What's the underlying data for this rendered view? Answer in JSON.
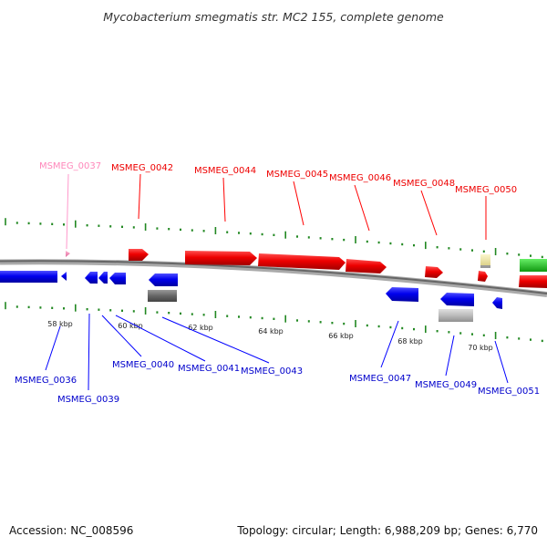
{
  "title": "Mycobacterium smegmatis str. MC2 155, complete genome",
  "accession": "Accession: NC_008596",
  "topology": "Topology: circular; Length: 6,988,209 bp; Genes: 6,770",
  "colors": {
    "forward": "#ff0000",
    "reverse": "#0000ff",
    "pseudo": "#ff88bb",
    "gray_dark": "#666666",
    "gray_light": "#bbbbbb",
    "yellow": "#f0e8a0",
    "green": "#33cc33",
    "tick": "#228822",
    "backbone": "#777777"
  },
  "kbp_labels": [
    "58 kbp",
    "60 kbp",
    "62 kbp",
    "64 kbp",
    "66 kbp",
    "68 kbp",
    "70 kbp"
  ],
  "upper_labels": [
    {
      "id": "MSMEG_0037",
      "kind": "pseudo"
    },
    {
      "id": "MSMEG_0042",
      "kind": "forward"
    },
    {
      "id": "MSMEG_0044",
      "kind": "forward"
    },
    {
      "id": "MSMEG_0045",
      "kind": "forward"
    },
    {
      "id": "MSMEG_0046",
      "kind": "forward"
    },
    {
      "id": "MSMEG_0048",
      "kind": "forward"
    },
    {
      "id": "MSMEG_0050",
      "kind": "forward"
    }
  ],
  "lower_labels": [
    {
      "id": "MSMEG_0036",
      "kind": "reverse"
    },
    {
      "id": "MSMEG_0039",
      "kind": "reverse"
    },
    {
      "id": "MSMEG_0040",
      "kind": "reverse"
    },
    {
      "id": "MSMEG_0041",
      "kind": "reverse"
    },
    {
      "id": "MSMEG_0043",
      "kind": "reverse"
    },
    {
      "id": "MSMEG_0047",
      "kind": "reverse"
    },
    {
      "id": "MSMEG_0049",
      "kind": "reverse"
    },
    {
      "id": "MSMEG_0051",
      "kind": "reverse"
    }
  ]
}
